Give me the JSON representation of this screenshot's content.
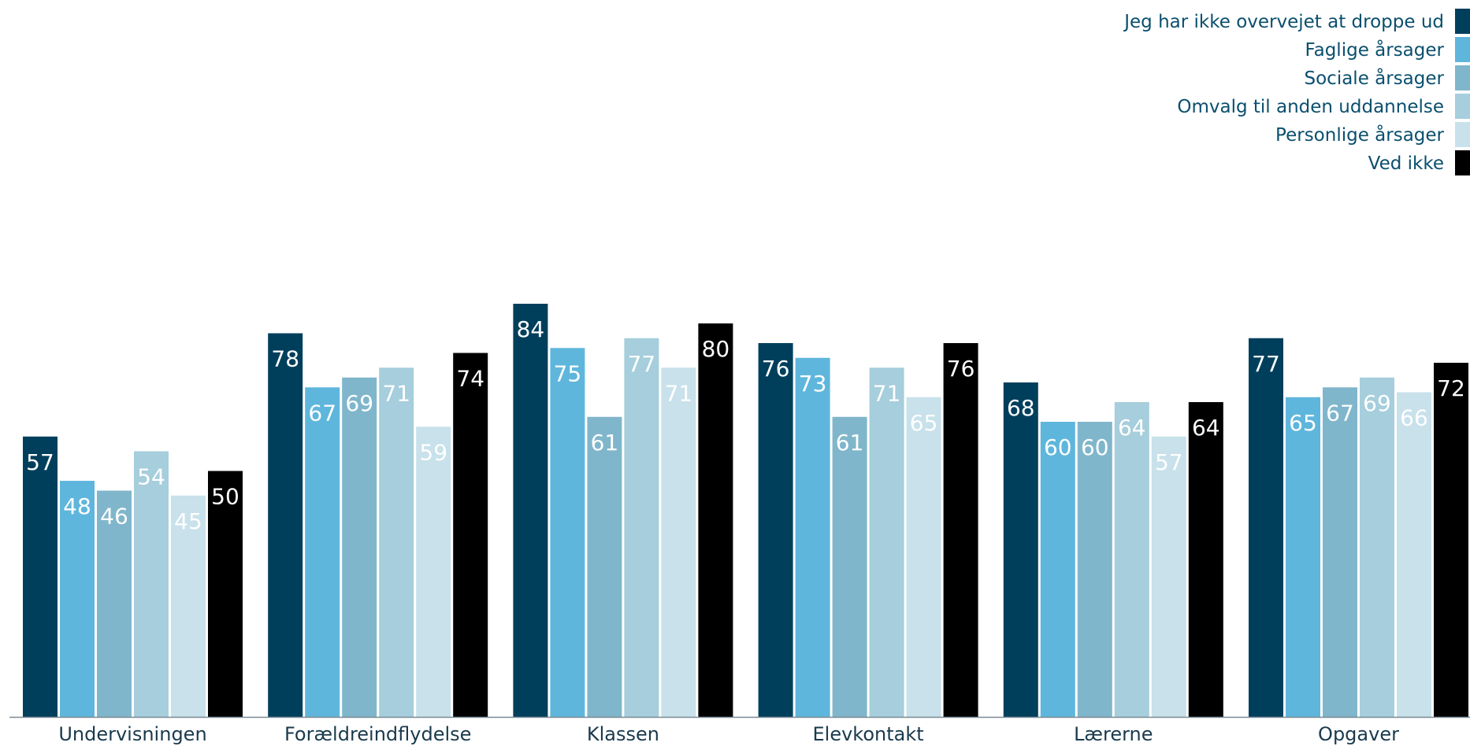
{
  "chart_data": {
    "type": "bar",
    "title": "",
    "xlabel": "",
    "ylabel": "",
    "ylim": [
      0,
      100
    ],
    "grid": false,
    "legend_position": "top-right",
    "categories": [
      "Undervisningen",
      "Forældreindflydelse",
      "Klassen",
      "Elevkontakt",
      "Lærerne",
      "Opgaver"
    ],
    "series": [
      {
        "name": "Jeg har ikke overvejet at droppe ud",
        "color": "#003f5c",
        "values": [
          57,
          78,
          84,
          76,
          68,
          77
        ]
      },
      {
        "name": "Faglige årsager",
        "color": "#5fb6dc",
        "values": [
          48,
          67,
          75,
          73,
          60,
          65
        ]
      },
      {
        "name": "Sociale årsager",
        "color": "#80b6cb",
        "values": [
          46,
          69,
          61,
          61,
          60,
          67
        ]
      },
      {
        "name": "Omvalg til anden uddannelse",
        "color": "#a6cedc",
        "values": [
          54,
          71,
          77,
          71,
          64,
          69
        ]
      },
      {
        "name": "Personlige årsager",
        "color": "#c8e1eb",
        "values": [
          45,
          59,
          71,
          65,
          57,
          66
        ]
      },
      {
        "name": "Ved ikke",
        "color": "#000000",
        "values": [
          50,
          74,
          80,
          76,
          64,
          72
        ]
      }
    ]
  }
}
